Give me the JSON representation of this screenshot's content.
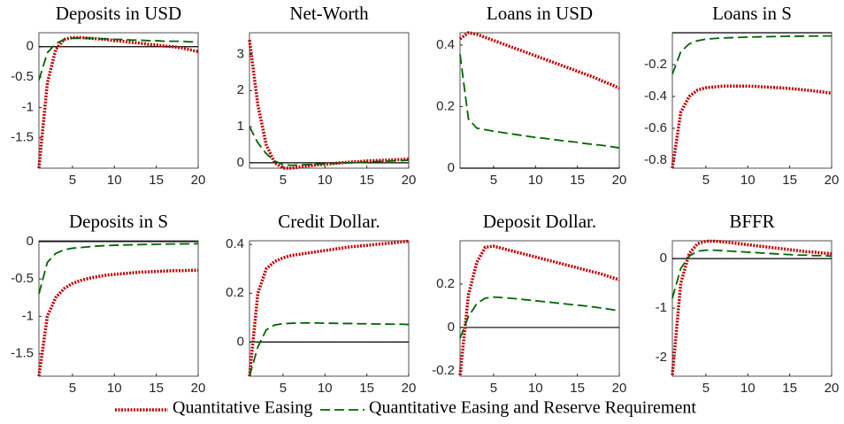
{
  "chart_data": [
    {
      "type": "line",
      "title": "Deposits in USD",
      "x": [
        1,
        2,
        3,
        4,
        5,
        6,
        7,
        8,
        9,
        10,
        11,
        12,
        13,
        14,
        15,
        16,
        17,
        18,
        19,
        20
      ],
      "xlim": [
        1,
        20
      ],
      "xticks": [
        5,
        10,
        15,
        20
      ],
      "ylim": [
        -2.0,
        0.23
      ],
      "yticks": [
        0,
        -0.5,
        -1,
        -1.5
      ],
      "series": [
        {
          "name": "Quantitative Easing",
          "color": "#c00000",
          "values": [
            -2.0,
            -0.6,
            -0.05,
            0.12,
            0.15,
            0.15,
            0.14,
            0.13,
            0.12,
            0.1,
            0.09,
            0.07,
            0.06,
            0.04,
            0.03,
            0.01,
            0,
            -0.02,
            -0.05,
            -0.08
          ]
        },
        {
          "name": "Quantitative Easing and Reserve Requirement",
          "color": "#006400",
          "values": [
            -0.55,
            -0.1,
            0.05,
            0.12,
            0.14,
            0.14,
            0.14,
            0.13,
            0.13,
            0.12,
            0.12,
            0.11,
            0.11,
            0.1,
            0.1,
            0.09,
            0.09,
            0.09,
            0.08,
            0.08
          ]
        }
      ]
    },
    {
      "type": "line",
      "title": "Net-Worth",
      "x": [
        1,
        2,
        3,
        4,
        5,
        6,
        7,
        8,
        9,
        10,
        11,
        12,
        13,
        14,
        15,
        16,
        17,
        18,
        19,
        20
      ],
      "xlim": [
        1,
        20
      ],
      "xticks": [
        5,
        10,
        15,
        20
      ],
      "ylim": [
        -0.15,
        3.6
      ],
      "yticks": [
        0,
        1,
        2,
        3
      ],
      "series": [
        {
          "name": "Quantitative Easing",
          "color": "#c00000",
          "values": [
            3.4,
            1.6,
            0.5,
            0.0,
            -0.15,
            -0.15,
            -0.12,
            -0.09,
            -0.06,
            -0.04,
            -0.02,
            0,
            0.02,
            0.03,
            0.05,
            0.06,
            0.07,
            0.08,
            0.09,
            0.1
          ]
        },
        {
          "name": "Quantitative Easing and Reserve Requirement",
          "color": "#006400",
          "values": [
            1.0,
            0.55,
            0.25,
            0.05,
            -0.05,
            -0.07,
            -0.06,
            -0.05,
            -0.04,
            -0.03,
            -0.02,
            -0.01,
            0,
            0.01,
            0.02,
            0.03,
            0.04,
            0.05,
            0.06,
            0.07
          ]
        }
      ]
    },
    {
      "type": "line",
      "title": "Loans in USD",
      "x": [
        1,
        2,
        3,
        4,
        5,
        6,
        7,
        8,
        9,
        10,
        11,
        12,
        13,
        14,
        15,
        16,
        17,
        18,
        19,
        20
      ],
      "xlim": [
        1,
        20
      ],
      "xticks": [
        5,
        10,
        15,
        20
      ],
      "ylim": [
        0,
        0.44
      ],
      "yticks": [
        0,
        0.2,
        0.4
      ],
      "series": [
        {
          "name": "Quantitative Easing",
          "color": "#c00000",
          "values": [
            0.42,
            0.44,
            0.435,
            0.425,
            0.415,
            0.405,
            0.395,
            0.385,
            0.375,
            0.365,
            0.355,
            0.345,
            0.335,
            0.325,
            0.315,
            0.305,
            0.295,
            0.283,
            0.272,
            0.26
          ]
        },
        {
          "name": "Quantitative Easing and Reserve Requirement",
          "color": "#006400",
          "values": [
            0.37,
            0.16,
            0.13,
            0.125,
            0.12,
            0.116,
            0.112,
            0.108,
            0.104,
            0.1,
            0.097,
            0.094,
            0.09,
            0.087,
            0.084,
            0.08,
            0.077,
            0.074,
            0.07,
            0.066
          ]
        }
      ]
    },
    {
      "type": "line",
      "title": "Loans in S",
      "x": [
        1,
        2,
        3,
        4,
        5,
        6,
        7,
        8,
        9,
        10,
        11,
        12,
        13,
        14,
        15,
        16,
        17,
        18,
        19,
        20
      ],
      "xlim": [
        1,
        20
      ],
      "xticks": [
        5,
        10,
        15,
        20
      ],
      "ylim": [
        -0.85,
        0
      ],
      "yticks": [
        -0.2,
        -0.4,
        -0.6,
        -0.8
      ],
      "series": [
        {
          "name": "Quantitative Easing",
          "color": "#c00000",
          "values": [
            -0.85,
            -0.5,
            -0.4,
            -0.36,
            -0.345,
            -0.34,
            -0.335,
            -0.335,
            -0.335,
            -0.335,
            -0.337,
            -0.34,
            -0.343,
            -0.346,
            -0.35,
            -0.355,
            -0.36,
            -0.366,
            -0.372,
            -0.38
          ]
        },
        {
          "name": "Quantitative Easing and Reserve Requirement",
          "color": "#006400",
          "values": [
            -0.26,
            -0.12,
            -0.07,
            -0.05,
            -0.04,
            -0.036,
            -0.033,
            -0.031,
            -0.029,
            -0.027,
            -0.026,
            -0.025,
            -0.024,
            -0.023,
            -0.022,
            -0.022,
            -0.021,
            -0.021,
            -0.02,
            -0.02
          ]
        }
      ]
    },
    {
      "type": "line",
      "title": "Deposits in S",
      "x": [
        1,
        2,
        3,
        4,
        5,
        6,
        7,
        8,
        9,
        10,
        11,
        12,
        13,
        14,
        15,
        16,
        17,
        18,
        19,
        20
      ],
      "xlim": [
        1,
        20
      ],
      "xticks": [
        5,
        10,
        15,
        20
      ],
      "ylim": [
        -1.8,
        0.01
      ],
      "yticks": [
        0,
        -0.5,
        -1,
        -1.5
      ],
      "series": [
        {
          "name": "Quantitative Easing",
          "color": "#c00000",
          "values": [
            -1.8,
            -1.0,
            -0.75,
            -0.63,
            -0.56,
            -0.52,
            -0.49,
            -0.47,
            -0.45,
            -0.44,
            -0.43,
            -0.42,
            -0.41,
            -0.405,
            -0.4,
            -0.395,
            -0.39,
            -0.39,
            -0.385,
            -0.385
          ]
        },
        {
          "name": "Quantitative Easing and Reserve Requirement",
          "color": "#006400",
          "values": [
            -0.7,
            -0.28,
            -0.16,
            -0.11,
            -0.09,
            -0.08,
            -0.07,
            -0.06,
            -0.055,
            -0.05,
            -0.047,
            -0.044,
            -0.041,
            -0.039,
            -0.037,
            -0.035,
            -0.033,
            -0.032,
            -0.031,
            -0.03
          ]
        }
      ]
    },
    {
      "type": "line",
      "title": "Credit Dollar.",
      "x": [
        1,
        2,
        3,
        4,
        5,
        6,
        7,
        8,
        9,
        10,
        11,
        12,
        13,
        14,
        15,
        16,
        17,
        18,
        19,
        20
      ],
      "xlim": [
        1,
        20
      ],
      "xticks": [
        5,
        10,
        15,
        20
      ],
      "ylim": [
        -0.14,
        0.415
      ],
      "yticks": [
        0,
        0.2,
        0.4
      ],
      "series": [
        {
          "name": "Quantitative Easing",
          "color": "#c00000",
          "values": [
            -0.14,
            0.2,
            0.3,
            0.33,
            0.345,
            0.355,
            0.36,
            0.365,
            0.37,
            0.375,
            0.38,
            0.385,
            0.39,
            0.393,
            0.396,
            0.4,
            0.403,
            0.406,
            0.41,
            0.413
          ]
        },
        {
          "name": "Quantitative Easing and Reserve Requirement",
          "color": "#006400",
          "values": [
            -0.14,
            -0.02,
            0.05,
            0.07,
            0.075,
            0.077,
            0.078,
            0.078,
            0.078,
            0.077,
            0.077,
            0.076,
            0.076,
            0.075,
            0.075,
            0.074,
            0.074,
            0.073,
            0.073,
            0.072
          ]
        }
      ]
    },
    {
      "type": "line",
      "title": "Deposit Dollar.",
      "x": [
        1,
        2,
        3,
        4,
        5,
        6,
        7,
        8,
        9,
        10,
        11,
        12,
        13,
        14,
        15,
        16,
        17,
        18,
        19,
        20
      ],
      "xlim": [
        1,
        20
      ],
      "xticks": [
        5,
        10,
        15,
        20
      ],
      "ylim": [
        -0.225,
        0.4
      ],
      "yticks": [
        0,
        0.2,
        -0.2
      ],
      "series": [
        {
          "name": "Quantitative Easing",
          "color": "#c00000",
          "values": [
            -0.22,
            0.15,
            0.3,
            0.37,
            0.375,
            0.365,
            0.355,
            0.345,
            0.335,
            0.325,
            0.315,
            0.305,
            0.295,
            0.285,
            0.275,
            0.265,
            0.255,
            0.245,
            0.232,
            0.22
          ]
        },
        {
          "name": "Quantitative Easing and Reserve Requirement",
          "color": "#006400",
          "values": [
            -0.05,
            0.05,
            0.11,
            0.135,
            0.14,
            0.138,
            0.135,
            0.131,
            0.127,
            0.123,
            0.119,
            0.115,
            0.111,
            0.107,
            0.103,
            0.099,
            0.094,
            0.089,
            0.083,
            0.077
          ]
        }
      ]
    },
    {
      "type": "line",
      "title": "BFFR",
      "x": [
        1,
        2,
        3,
        4,
        5,
        6,
        7,
        8,
        9,
        10,
        11,
        12,
        13,
        14,
        15,
        16,
        17,
        18,
        19,
        20
      ],
      "xlim": [
        1,
        20
      ],
      "xticks": [
        5,
        10,
        15,
        20
      ],
      "ylim": [
        -2.375,
        0.36
      ],
      "yticks": [
        0,
        -1,
        -2
      ],
      "series": [
        {
          "name": "Quantitative Easing",
          "color": "#c00000",
          "values": [
            -2.35,
            -0.5,
            0.1,
            0.3,
            0.35,
            0.35,
            0.34,
            0.32,
            0.3,
            0.28,
            0.26,
            0.24,
            0.22,
            0.2,
            0.18,
            0.16,
            0.14,
            0.13,
            0.11,
            0.1
          ]
        },
        {
          "name": "Quantitative Easing and Reserve Requirement",
          "color": "#006400",
          "values": [
            -0.8,
            -0.2,
            0.05,
            0.15,
            0.17,
            0.17,
            0.16,
            0.15,
            0.14,
            0.13,
            0.12,
            0.11,
            0.1,
            0.09,
            0.08,
            0.07,
            0.07,
            0.06,
            0.06,
            0.05
          ]
        }
      ]
    }
  ]
}
